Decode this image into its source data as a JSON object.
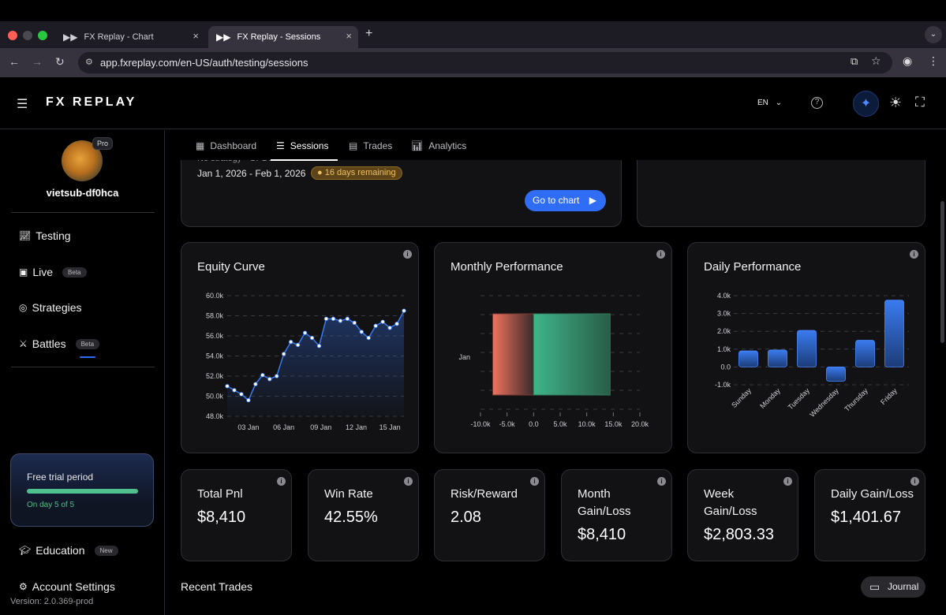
{
  "browser": {
    "tabs": [
      {
        "title": "FX Replay - Chart"
      },
      {
        "title": "FX Replay - Sessions"
      }
    ],
    "url": "app.fxreplay.com/en-US/auth/testing/sessions"
  },
  "header": {
    "logo": "FX REPLAY",
    "language": "EN"
  },
  "user": {
    "name": "vietsub-df0hca",
    "plan": "Pro"
  },
  "sidebar": {
    "items": [
      {
        "label": "Testing"
      },
      {
        "label": "Live",
        "badge": "Beta"
      },
      {
        "label": "Strategies"
      },
      {
        "label": "Battles",
        "badge": "Beta"
      }
    ],
    "trial": {
      "title": "Free trial period",
      "progress_text": "On day 5 of 5",
      "progress": 1.0
    },
    "education": {
      "label": "Education",
      "badge": "New"
    },
    "settings": {
      "label": "Account Settings"
    },
    "version": "Version: 2.0.369-prod"
  },
  "page_tabs": [
    {
      "label": "Dashboard"
    },
    {
      "label": "Sessions"
    },
    {
      "label": "Trades"
    },
    {
      "label": "Analytics"
    }
  ],
  "session": {
    "strategy_partial": "No strategy · GPBUSD",
    "date_range": "Jan 1, 2026 - Feb 1, 2026",
    "remaining": "16 days remaining",
    "go_button": "Go to chart"
  },
  "charts": {
    "equity_title": "Equity Curve",
    "monthly_title": "Monthly Performance",
    "daily_title": "Daily Performance"
  },
  "chart_data": [
    {
      "type": "line",
      "title": "Equity Curve",
      "x": [
        "02 Jan",
        "02 Jan",
        "02 Jan",
        "03 Jan",
        "05 Jan",
        "05 Jan",
        "06 Jan",
        "06 Jan",
        "07 Jan",
        "07 Jan",
        "07 Jan",
        "08 Jan",
        "08 Jan",
        "09 Jan",
        "09 Jan",
        "10 Jan",
        "12 Jan",
        "13 Jan",
        "13 Jan",
        "14 Jan",
        "14 Jan",
        "15 Jan",
        "15 Jan",
        "16 Jan",
        "16 Jan",
        "16 Jan"
      ],
      "y": [
        51000,
        50600,
        50200,
        49600,
        51200,
        52100,
        51700,
        52000,
        54200,
        55400,
        55100,
        56300,
        55800,
        55000,
        57700,
        57700,
        57500,
        57700,
        57300,
        56400,
        55800,
        57000,
        57400,
        56800,
        57200,
        58500
      ],
      "xticks": [
        "03 Jan",
        "06 Jan",
        "09 Jan",
        "12 Jan",
        "15 Jan"
      ],
      "yticks": [
        "48.0k",
        "50.0k",
        "52.0k",
        "54.0k",
        "56.0k",
        "58.0k",
        "60.0k"
      ],
      "ylim": [
        48000,
        60000
      ]
    },
    {
      "type": "bar",
      "title": "Monthly Performance",
      "orientation": "horizontal",
      "categories": [
        "Jan"
      ],
      "series": [
        {
          "name": "Loss",
          "values": [
            -7700
          ]
        },
        {
          "name": "Profit",
          "values": [
            14400
          ]
        }
      ],
      "xticks": [
        "-10.0k",
        "-5.0k",
        "0.0",
        "5.0k",
        "10.0k",
        "15.0k",
        "20.0k"
      ],
      "xlim": [
        -10000,
        20000
      ]
    },
    {
      "type": "bar",
      "title": "Daily Performance",
      "categories": [
        "Sunday",
        "Monday",
        "Tuesday",
        "Wednesday",
        "Thursday",
        "Friday"
      ],
      "values": [
        900,
        950,
        2050,
        -800,
        1500,
        3750
      ],
      "yticks": [
        "-1.0k",
        "0.0",
        "1.0k",
        "2.0k",
        "3.0k",
        "4.0k"
      ],
      "ylim": [
        -1000,
        4000
      ]
    }
  ],
  "stats": [
    {
      "label": "Total Pnl",
      "value": "$8,410"
    },
    {
      "label": "Win Rate",
      "value": "42.55%"
    },
    {
      "label": "Risk/Reward",
      "value": "2.08"
    },
    {
      "label": "Month Gain/Loss",
      "value": "$8,410"
    },
    {
      "label": "Week Gain/Loss",
      "value": "$2,803.33"
    },
    {
      "label": "Daily Gain/Loss",
      "value": "$1,401.67"
    }
  ],
  "recent_trades_title": "Recent Trades",
  "journal_button": "Journal",
  "colors": {
    "accent": "#2f6df6",
    "bar_blue": "#3a7bef",
    "profit": "#2fa37a",
    "loss": "#e8695a",
    "remaining_badge": "#b8862b"
  }
}
